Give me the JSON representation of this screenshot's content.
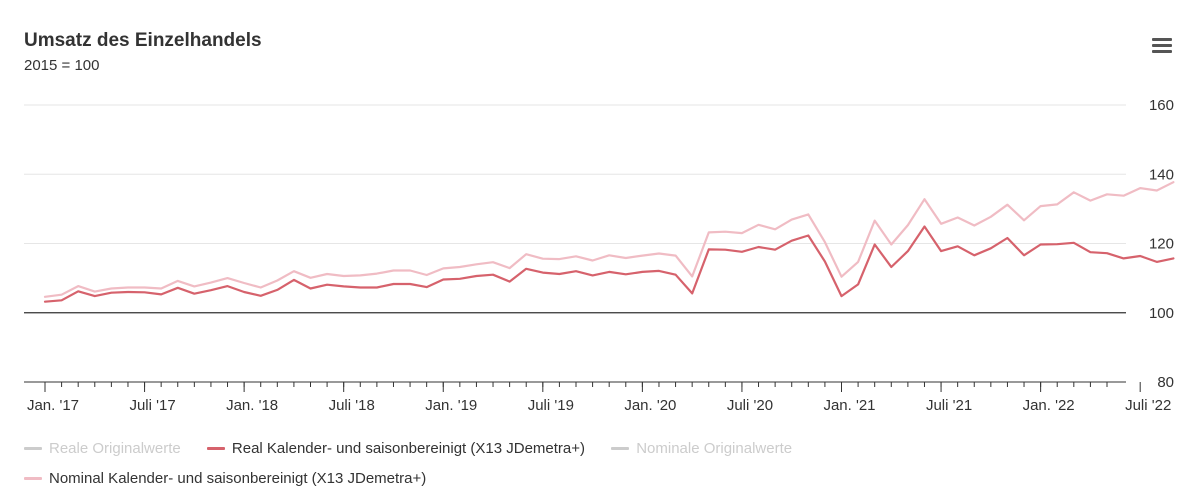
{
  "chart_data": {
    "type": "line",
    "title": "Umsatz des Einzelhandels",
    "subtitle": "2015 = 100",
    "ylim": [
      80,
      160
    ],
    "y_ticks": [
      80,
      100,
      120,
      140,
      160
    ],
    "reference_line": 100,
    "x_start": "2017-01",
    "x_end": "2022-05",
    "x_ticks": [
      {
        "date": "2017-01",
        "label": "Jan. '17"
      },
      {
        "date": "2017-07",
        "label": "Juli '17"
      },
      {
        "date": "2018-01",
        "label": "Jan. '18"
      },
      {
        "date": "2018-07",
        "label": "Juli '18"
      },
      {
        "date": "2019-01",
        "label": "Jan. '19"
      },
      {
        "date": "2019-07",
        "label": "Juli '19"
      },
      {
        "date": "2020-01",
        "label": "Jan. '20"
      },
      {
        "date": "2020-07",
        "label": "Juli '20"
      },
      {
        "date": "2021-01",
        "label": "Jan. '21"
      },
      {
        "date": "2021-07",
        "label": "Juli '21"
      },
      {
        "date": "2022-01",
        "label": "Jan. '22"
      },
      {
        "date": "2022-07",
        "label": "Juli '22"
      }
    ],
    "grid": true,
    "legend_position": "bottom",
    "series": [
      {
        "name": "Reale Originalwerte",
        "color": "#cccccc",
        "visible": false,
        "values": []
      },
      {
        "name": "Real Kalender- und saisonbereinigt (X13 JDemetra+)",
        "color": "#d6626c",
        "visible": true,
        "values": [
          103.2,
          103.6,
          106.2,
          104.8,
          105.8,
          106.0,
          105.9,
          105.3,
          107.2,
          105.5,
          106.5,
          107.7,
          106.0,
          104.9,
          106.6,
          109.5,
          107.0,
          108.1,
          107.6,
          107.3,
          107.3,
          108.3,
          108.3,
          107.4,
          109.6,
          109.8,
          110.6,
          111.0,
          109.0,
          112.7,
          111.6,
          111.2,
          112.0,
          110.8,
          111.8,
          111.1,
          111.8,
          112.1,
          111.0,
          105.6,
          118.3,
          118.2,
          117.6,
          119.0,
          118.2,
          120.8,
          122.3,
          114.8,
          104.8,
          108.2,
          119.7,
          113.2,
          117.8,
          124.9,
          117.8,
          119.2,
          116.6,
          118.6,
          121.6,
          116.6,
          119.7,
          119.8,
          120.2,
          117.5,
          117.2,
          115.7,
          116.4,
          114.7,
          115.7
        ]
      },
      {
        "name": "Nominale Originalwerte",
        "color": "#cccccc",
        "visible": false,
        "values": []
      },
      {
        "name": "Nominal Kalender- und saisonbereinigt (X13 JDemetra+)",
        "color": "#f0bcc4",
        "visible": true,
        "values": [
          104.6,
          105.2,
          107.7,
          106.1,
          107.0,
          107.3,
          107.3,
          107.0,
          109.2,
          107.6,
          108.7,
          110.0,
          108.6,
          107.3,
          109.3,
          112.0,
          110.1,
          111.2,
          110.6,
          110.8,
          111.3,
          112.2,
          112.2,
          110.9,
          112.8,
          113.2,
          114.0,
          114.6,
          112.9,
          116.9,
          115.6,
          115.5,
          116.3,
          115.1,
          116.6,
          115.8,
          116.5,
          117.1,
          116.5,
          110.5,
          123.2,
          123.4,
          123.0,
          125.4,
          124.1,
          126.9,
          128.4,
          120.4,
          110.4,
          114.7,
          126.6,
          119.7,
          125.3,
          132.8,
          125.7,
          127.5,
          125.2,
          127.7,
          131.2,
          126.7,
          130.8,
          131.3,
          134.8,
          132.4,
          134.2,
          133.8,
          136.0,
          135.3,
          137.7
        ]
      }
    ]
  },
  "legend": [
    {
      "label": "Reale Originalwerte",
      "color": "#cccccc",
      "visible": false
    },
    {
      "label": "Real Kalender- und saisonbereinigt (X13 JDemetra+)",
      "color": "#d6626c",
      "visible": true
    },
    {
      "label": "Nominale Originalwerte",
      "color": "#cccccc",
      "visible": false
    },
    {
      "label": "Nominal Kalender- und saisonbereinigt (X13 JDemetra+)",
      "color": "#f0bcc4",
      "visible": true
    }
  ],
  "menu": {
    "icon": "hamburger-menu-icon"
  }
}
